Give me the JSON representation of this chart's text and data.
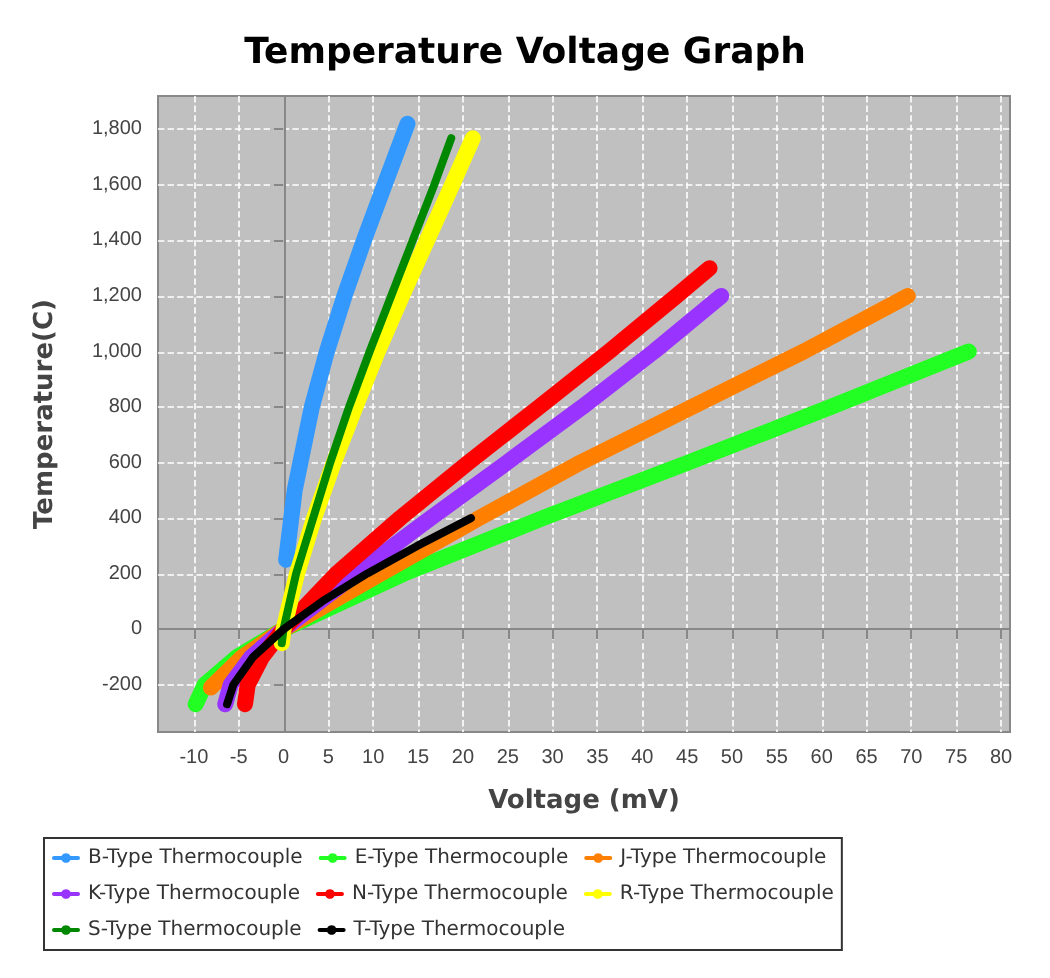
{
  "chart_data": {
    "type": "line",
    "title": "Temperature Voltage Graph",
    "xlabel": "Voltage (mV)",
    "ylabel": "Temperature(C)",
    "xlim": [
      -14,
      81
    ],
    "xticks": [
      -10,
      -5,
      0,
      5,
      10,
      15,
      20,
      25,
      30,
      35,
      40,
      45,
      50,
      55,
      60,
      65,
      70,
      75,
      80
    ],
    "ylim": [
      -370,
      1920
    ],
    "yticks": [
      -200,
      0,
      200,
      400,
      600,
      800,
      {
        "value": 1000,
        "label": "1,000"
      },
      {
        "value": 1200,
        "label": "1,200"
      },
      {
        "value": 1400,
        "label": "1,400"
      },
      {
        "value": 1600,
        "label": "1,600"
      },
      {
        "value": 1800,
        "label": "1,800"
      }
    ],
    "grid": true,
    "legend": "bottom",
    "marker": "none",
    "line_style": "solid",
    "series": [
      {
        "name": "B-Type Thermocouple",
        "color": "#3399ff",
        "x": [
          0.29,
          1.24,
          3.15,
          4.83,
          6.79,
          8.96,
          11.26,
          13.82
        ],
        "values": [
          250,
          500,
          800,
          1000,
          1200,
          1400,
          1600,
          1820
        ]
      },
      {
        "name": "E-Type Thermocouple",
        "color": "#22ff22",
        "x": [
          -9.8,
          -8.8,
          -5.2,
          0,
          13.4,
          28.9,
          45.1,
          61,
          76.4
        ],
        "values": [
          -270,
          -200,
          -100,
          0,
          200,
          400,
          600,
          800,
          1000
        ]
      },
      {
        "name": "J-Type Thermocouple",
        "color": "#ff8000",
        "x": [
          -8.1,
          -4.6,
          0,
          10.8,
          21.8,
          33.1,
          45.5,
          58,
          69.6
        ],
        "values": [
          -210,
          -100,
          0,
          200,
          400,
          600,
          800,
          1000,
          1200
        ]
      },
      {
        "name": "K-Type Thermocouple",
        "color": "#9933ff",
        "x": [
          -6.5,
          -5.9,
          -3.6,
          0,
          8.1,
          16.4,
          24.9,
          33.3,
          41.3,
          48.8
        ],
        "values": [
          -270,
          -200,
          -100,
          0,
          200,
          400,
          600,
          800,
          1000,
          1200
        ]
      },
      {
        "name": "N-Type Thermocouple",
        "color": "#ff0000",
        "x": [
          -4.3,
          -4,
          -2.4,
          0,
          5.9,
          13,
          20.6,
          28.5,
          36.3,
          43.8,
          47.5
        ],
        "values": [
          -270,
          -200,
          -100,
          0,
          200,
          400,
          600,
          800,
          1000,
          1200,
          1300
        ]
      },
      {
        "name": "R-Type Thermocouple",
        "color": "#ffff00",
        "x": [
          -0.2,
          0,
          1.5,
          3.4,
          5.6,
          8,
          10.5,
          13.2,
          16,
          18.8,
          21.1
        ],
        "values": [
          -50,
          0,
          200,
          400,
          600,
          800,
          1000,
          1200,
          1400,
          1600,
          1768
        ]
      },
      {
        "name": "S-Type Thermocouple",
        "color": "#008800",
        "x": [
          -0.2,
          0,
          1.4,
          3.3,
          5.2,
          7.3,
          9.6,
          12,
          14.4,
          16.8,
          18.7
        ],
        "values": [
          -50,
          0,
          200,
          400,
          600,
          800,
          1000,
          1200,
          1400,
          1600,
          1768
        ]
      },
      {
        "name": "T-Type Thermocouple",
        "color": "#000000",
        "x": [
          -6.3,
          -5.6,
          -3.4,
          0,
          4.3,
          9.3,
          14.9,
          20.9
        ],
        "values": [
          -270,
          -200,
          -100,
          0,
          100,
          200,
          300,
          400
        ]
      }
    ]
  }
}
